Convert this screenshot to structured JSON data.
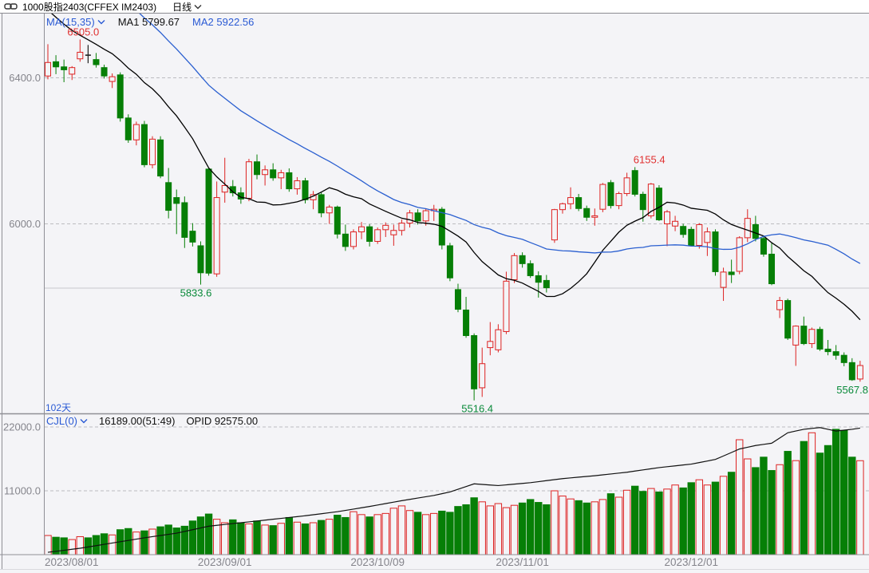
{
  "header": {
    "title": "1000股指2403(CFFEX IM2403)",
    "period": "日线"
  },
  "main_pane": {
    "indicator": "MA(15,35)",
    "ma1": "MA1 5799.67",
    "ma2": "MA2 5922.56",
    "days": "102天",
    "y_ticks": [
      {
        "value": 6400,
        "label": "6400.0"
      },
      {
        "value": 6000,
        "label": "6000.0"
      }
    ],
    "solid_line_price": 5824
  },
  "volume_pane": {
    "indicator": "CJL(0)",
    "volume_value": "16189.00(51:49)",
    "opid_value": "OPID 92575.00",
    "y_ticks": [
      {
        "value": 22000,
        "label": "22000.0"
      },
      {
        "value": 11000,
        "label": "11000.0"
      }
    ]
  },
  "x_axis": {
    "ticks": [
      {
        "candle": 0,
        "label": "2023/08/01",
        "anchor": "start"
      },
      {
        "candle": 22,
        "label": "2023/09/01",
        "anchor": "middle"
      },
      {
        "candle": 41,
        "label": "2023/10/09",
        "anchor": "middle"
      },
      {
        "candle": 59,
        "label": "2023/11/01",
        "anchor": "middle"
      },
      {
        "candle": 80,
        "label": "2023/12/01",
        "anchor": "middle"
      }
    ]
  },
  "colors": {
    "up": "#dd2222",
    "down": "#067f06",
    "doji": "#222222",
    "ma1": "#000000",
    "ma2": "#2a5fd0",
    "grid": "#bcbcc0",
    "solid_line": "#c9c9cc",
    "axis_text": "#85858c",
    "frame": "#8f8f96",
    "text_blue": "#2a5ad4",
    "label_red": "#e03030",
    "label_green": "#0a8a3a",
    "bg": "#f4f4f7",
    "bottom_edge": "#d9d9de"
  },
  "chart_data": {
    "type": "candlestick+volume",
    "title": "1000股指2403(CFFEX IM2403) 日线",
    "price_axis": {
      "ticks": [
        6400,
        6000
      ],
      "high_label": 6505.0,
      "low_label": 5516.4
    },
    "volume_axis": {
      "ticks": [
        22000,
        11000
      ],
      "max": 22000
    },
    "candles": [
      [
        6405,
        6492,
        6396,
        6442
      ],
      [
        6444,
        6462,
        6410,
        6430
      ],
      [
        6430,
        6450,
        6388,
        6422
      ],
      [
        6410,
        6432,
        6394,
        6428
      ],
      [
        6452,
        6505,
        6444,
        6470
      ],
      [
        6463,
        6490,
        6440,
        6462
      ],
      [
        6450,
        6468,
        6428,
        6436
      ],
      [
        6428,
        6436,
        6398,
        6405
      ],
      [
        6390,
        6412,
        6372,
        6403
      ],
      [
        6408,
        6415,
        6280,
        6290
      ],
      [
        6290,
        6300,
        6222,
        6230
      ],
      [
        6230,
        6280,
        6215,
        6272
      ],
      [
        6272,
        6282,
        6155,
        6162
      ],
      [
        6162,
        6240,
        6152,
        6232
      ],
      [
        6230,
        6240,
        6125,
        6131
      ],
      [
        6113,
        6153,
        6015,
        6037
      ],
      [
        6072,
        6094,
        5972,
        6056
      ],
      [
        6058,
        6075,
        5934,
        5963
      ],
      [
        5980,
        6002,
        5938,
        5950
      ],
      [
        5940,
        5952,
        5833.6,
        5866
      ],
      [
        6150,
        6152,
        5858,
        5865
      ],
      [
        5863,
        6116,
        5855,
        6072
      ],
      [
        6087,
        6181,
        6058,
        6105
      ],
      [
        6102,
        6120,
        6075,
        6085
      ],
      [
        6085,
        6100,
        6055,
        6068
      ],
      [
        6070,
        6178,
        6062,
        6170
      ],
      [
        6170,
        6190,
        6122,
        6135
      ],
      [
        6135,
        6160,
        6105,
        6148
      ],
      [
        6148,
        6166,
        6118,
        6126
      ],
      [
        6126,
        6148,
        6095,
        6140
      ],
      [
        6140,
        6152,
        6088,
        6096
      ],
      [
        6096,
        6128,
        6080,
        6118
      ],
      [
        6118,
        6126,
        6056,
        6066
      ],
      [
        6066,
        6090,
        6040,
        6080
      ],
      [
        6080,
        6086,
        6018,
        6030
      ],
      [
        6030,
        6052,
        6000,
        6046
      ],
      [
        6046,
        6050,
        5960,
        5972
      ],
      [
        5972,
        5998,
        5926,
        5938
      ],
      [
        5938,
        5985,
        5930,
        5978
      ],
      [
        5978,
        6005,
        5958,
        5992
      ],
      [
        5992,
        5999,
        5938,
        5952
      ],
      [
        5952,
        5990,
        5945,
        5984
      ],
      [
        5984,
        6004,
        5964,
        5996
      ],
      [
        5970,
        5998,
        5940,
        5982
      ],
      [
        5982,
        6012,
        5968,
        6002
      ],
      [
        6002,
        6038,
        5990,
        6030
      ],
      [
        6030,
        6040,
        5998,
        6008
      ],
      [
        6008,
        6042,
        5995,
        6036
      ],
      [
        6036,
        6052,
        6008,
        6040
      ],
      [
        6040,
        6046,
        5930,
        5942
      ],
      [
        5940,
        5948,
        5843,
        5852
      ],
      [
        5820,
        5836,
        5758,
        5766
      ],
      [
        5764,
        5800,
        5688,
        5694
      ],
      [
        5694,
        5700,
        5516.4,
        5548
      ],
      [
        5551,
        5661,
        5526,
        5617
      ],
      [
        5661,
        5731,
        5640,
        5678
      ],
      [
        5655,
        5725,
        5648,
        5710
      ],
      [
        5705,
        5869,
        5698,
        5843
      ],
      [
        5847,
        5920,
        5838,
        5913
      ],
      [
        5913,
        5922,
        5880,
        5891
      ],
      [
        5891,
        5900,
        5852,
        5858
      ],
      [
        5858,
        5870,
        5798,
        5840
      ],
      [
        5845,
        5860,
        5812,
        5825
      ],
      [
        5956,
        6041,
        5948,
        6039
      ],
      [
        6039,
        6058,
        6028,
        6055
      ],
      [
        6055,
        6100,
        6040,
        6072
      ],
      [
        6072,
        6082,
        6035,
        6042
      ],
      [
        6042,
        6050,
        6008,
        6018
      ],
      [
        6018,
        6042,
        5995,
        6022
      ],
      [
        6040,
        6112,
        6032,
        6108
      ],
      [
        6113,
        6120,
        6042,
        6050
      ],
      [
        6050,
        6088,
        6040,
        6083
      ],
      [
        6083,
        6140,
        6076,
        6126
      ],
      [
        6146,
        6155.4,
        6075,
        6081
      ],
      [
        6081,
        6088,
        6006,
        6039
      ],
      [
        6022,
        6112,
        6015,
        6109
      ],
      [
        6098,
        6106,
        6008,
        6011
      ],
      [
        6000,
        6038,
        5939,
        6033
      ],
      [
        5994,
        6022,
        5980,
        6007
      ],
      [
        5993,
        6000,
        5962,
        5971
      ],
      [
        5985,
        5992,
        5938,
        5941
      ],
      [
        5941,
        6002,
        5932,
        5998
      ],
      [
        5949,
        5990,
        5912,
        5978
      ],
      [
        5978,
        5985,
        5858,
        5869
      ],
      [
        5826,
        5880,
        5789,
        5868
      ],
      [
        5868,
        5902,
        5838,
        5861
      ],
      [
        5870,
        5966,
        5862,
        5962
      ],
      [
        5962,
        6040,
        5950,
        6015
      ],
      [
        5998,
        6022,
        5952,
        5960
      ],
      [
        5960,
        5968,
        5910,
        5917
      ],
      [
        5917,
        5948,
        5832,
        5836
      ],
      [
        5765,
        5800,
        5742,
        5790
      ],
      [
        5790,
        5795,
        5682,
        5687
      ],
      [
        5668,
        5722,
        5611,
        5720
      ],
      [
        5720,
        5746,
        5668,
        5672
      ],
      [
        5672,
        5716,
        5660,
        5711
      ],
      [
        5711,
        5718,
        5652,
        5657
      ],
      [
        5657,
        5682,
        5640,
        5650
      ],
      [
        5650,
        5668,
        5628,
        5640
      ],
      [
        5640,
        5648,
        5610,
        5620
      ],
      [
        5620,
        5632,
        5570,
        5573
      ],
      [
        5575,
        5625,
        5567.8,
        5612
      ]
    ],
    "volumes": [
      3300,
      3000,
      2900,
      2600,
      3100,
      2900,
      3300,
      3600,
      3400,
      4300,
      4500,
      3900,
      4100,
      4400,
      4800,
      5100,
      4600,
      4900,
      5800,
      6500,
      7000,
      6100,
      5500,
      6000,
      5500,
      5300,
      5800,
      5100,
      5000,
      5400,
      6400,
      5600,
      5300,
      5500,
      5900,
      6100,
      6800,
      6400,
      7400,
      6900,
      6500,
      6900,
      7100,
      8000,
      8400,
      7600,
      7300,
      6900,
      7100,
      7500,
      7300,
      8300,
      8600,
      9800,
      9100,
      8400,
      8800,
      8100,
      8500,
      8900,
      9500,
      9000,
      8600,
      11000,
      10100,
      9600,
      9300,
      8900,
      9100,
      9500,
      10500,
      9900,
      11100,
      11800,
      10900,
      11400,
      10800,
      11300,
      12000,
      11500,
      12400,
      12900,
      12000,
      12500,
      13500,
      14200,
      19800,
      16500,
      15000,
      16800,
      14500,
      15500,
      17800,
      16200,
      19500,
      21000,
      17500,
      18800,
      21600,
      21400,
      16800,
      16189
    ],
    "opid_line": [
      [
        0,
        400
      ],
      [
        4,
        1100
      ],
      [
        8,
        2000
      ],
      [
        12,
        2900
      ],
      [
        16,
        3700
      ],
      [
        20,
        4900
      ],
      [
        24,
        5500
      ],
      [
        28,
        6100
      ],
      [
        32,
        6700
      ],
      [
        36,
        7400
      ],
      [
        40,
        8300
      ],
      [
        44,
        9300
      ],
      [
        48,
        10200
      ],
      [
        50,
        10800
      ],
      [
        53,
        12200
      ],
      [
        56,
        11900
      ],
      [
        60,
        12400
      ],
      [
        64,
        13100
      ],
      [
        68,
        13600
      ],
      [
        72,
        14200
      ],
      [
        76,
        15000
      ],
      [
        80,
        15600
      ],
      [
        83,
        16400
      ],
      [
        86,
        18200
      ],
      [
        88,
        18800
      ],
      [
        90,
        19200
      ],
      [
        92,
        21000
      ],
      [
        94,
        21600
      ],
      [
        96,
        21900
      ],
      [
        98,
        21300
      ],
      [
        100,
        21600
      ],
      [
        101,
        21800
      ]
    ],
    "ma_periods": [
      15,
      35
    ],
    "ma_prehistory": {
      "start": 7150,
      "end": 6465,
      "count": 35
    },
    "annotations": [
      {
        "text": "6505.0",
        "kind": "high",
        "candle": 4,
        "dx": 4
      },
      {
        "text": "5833.6",
        "kind": "low",
        "candle": 19,
        "dx": -6
      },
      {
        "text": "5516.4",
        "kind": "low",
        "candle": 53,
        "dx": 4
      },
      {
        "text": "6155.4",
        "kind": "high",
        "candle": 73,
        "dx": 18
      },
      {
        "text": "5567.8",
        "kind": "low",
        "candle": 101,
        "dx": 0,
        "anchor": "end",
        "x": 1088
      }
    ]
  }
}
